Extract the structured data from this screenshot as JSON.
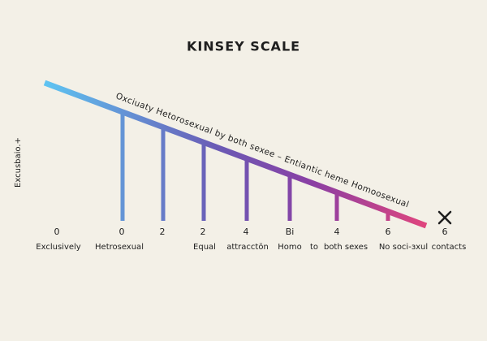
{
  "title": "KINSEY SCALE",
  "side_label": "Excusbaio.+",
  "diagonal_label": "Oxciuaty  Hetorosexual  by both sexee  –  Entiantic heme  Homoosexual",
  "numbers": [
    "0",
    "0",
    "2",
    "2",
    "4",
    "Bi",
    "4",
    "6",
    "6"
  ],
  "labels": [
    "Exclusively",
    "Hetrosexual",
    "Equal",
    "attracctön",
    "Homo",
    "to",
    "both sexes",
    "No soci-ɜxul",
    "contacts"
  ]
}
